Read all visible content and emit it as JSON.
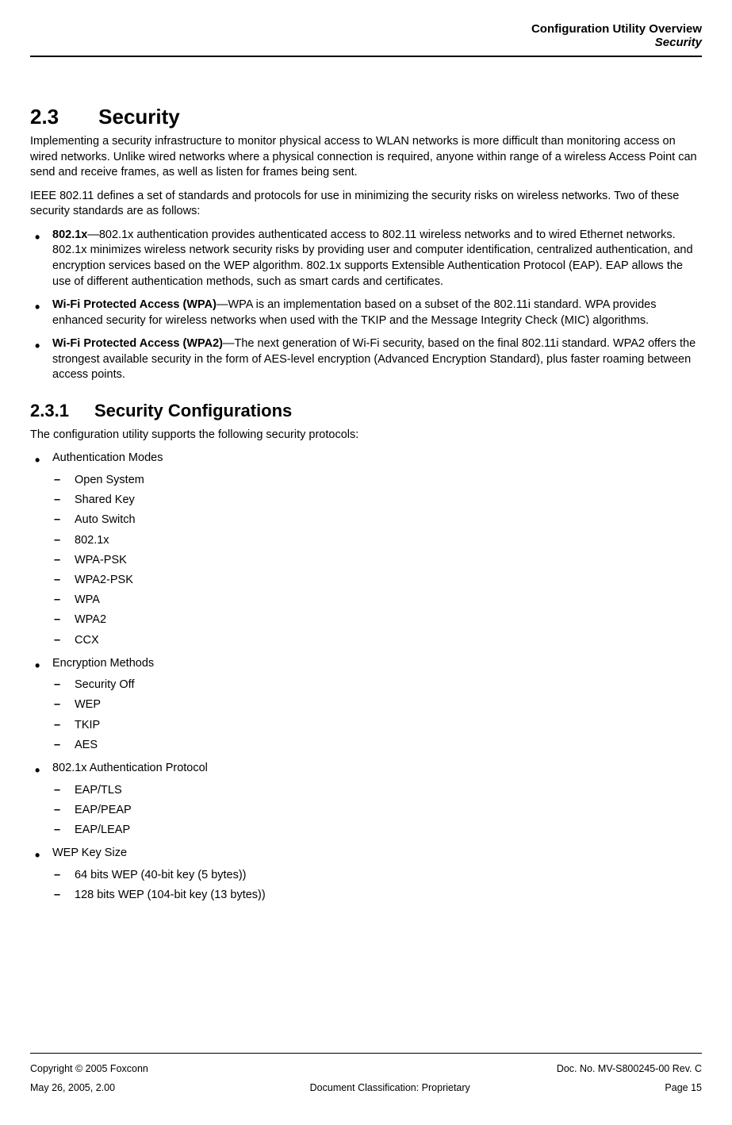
{
  "header": {
    "title": "Configuration Utility Overview",
    "subtitle": "Security"
  },
  "section": {
    "number": "2.3",
    "title": "Security",
    "para1": "Implementing a security infrastructure to monitor physical access to WLAN networks is more difficult than monitoring access on wired networks. Unlike wired networks where a physical connection is required, anyone within range of a wireless Access Point can send and receive frames, as well as listen for frames being sent.",
    "para2": "IEEE 802.11 defines a set of standards and protocols for use in minimizing the security risks on wireless networks. Two of these security standards are as follows:",
    "bullets": [
      {
        "bold": "802.1x",
        "text": "—802.1x authentication provides authenticated access to 802.11 wireless networks and to wired Ethernet networks. 802.1x minimizes wireless network security risks by providing user and computer identification, centralized authentication, and encryption services based on the WEP algorithm. 802.1x supports Extensible Authentication Protocol (EAP). EAP allows the use of different authentication methods, such as smart cards and certificates."
      },
      {
        "bold": "Wi-Fi Protected Access (WPA)",
        "text": "—WPA is an implementation based on a subset of the 802.11i standard. WPA provides enhanced security for wireless networks when used with the TKIP and the Message Integrity Check (MIC) algorithms."
      },
      {
        "bold": "Wi-Fi Protected Access (WPA2)",
        "text": "—The next generation of Wi-Fi security, based on the final 802.11i standard. WPA2 offers the strongest available security in the form of AES-level encryption (Advanced Encryption Standard), plus faster roaming between access points."
      }
    ]
  },
  "subsection": {
    "number": "2.3.1",
    "title": "Security Configurations",
    "intro": "The configuration utility supports the following security protocols:",
    "groups": [
      {
        "label": "Authentication Modes",
        "items": [
          "Open System",
          "Shared Key",
          "Auto Switch",
          "802.1x",
          "WPA-PSK",
          "WPA2-PSK",
          "WPA",
          "WPA2",
          "CCX"
        ]
      },
      {
        "label": "Encryption Methods",
        "items": [
          "Security Off",
          "WEP",
          "TKIP",
          "AES"
        ]
      },
      {
        "label": "802.1x Authentication Protocol",
        "items": [
          "EAP/TLS",
          "EAP/PEAP",
          "EAP/LEAP"
        ]
      },
      {
        "label": "WEP Key Size",
        "items": [
          "64 bits WEP (40-bit key (5 bytes))",
          "128 bits WEP (104-bit key (13 bytes))"
        ]
      }
    ]
  },
  "footer": {
    "copyright": "Copyright © 2005 Foxconn",
    "docno": "Doc. No. MV-S800245-00 Rev. C",
    "date": "May 26, 2005, 2.00",
    "classification": "Document Classification: Proprietary",
    "page": "Page 15"
  }
}
